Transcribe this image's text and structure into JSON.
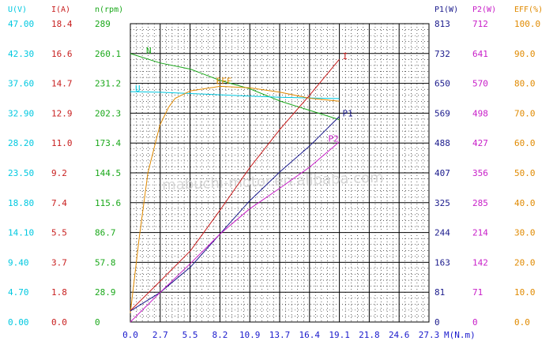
{
  "chart_data": {
    "type": "line",
    "watermark": "mabuchi-motor.en.alibaba.com",
    "x_axis": {
      "label": "M(N.m)",
      "ticks": [
        "0.0",
        "2.7",
        "5.5",
        "8.2",
        "10.9",
        "13.7",
        "16.4",
        "19.1",
        "21.8",
        "24.6",
        "27.3"
      ],
      "range": [
        0,
        27.3
      ]
    },
    "left_axes": [
      {
        "header": "U(V)",
        "color": "#00c8e0",
        "ticks": [
          "0.00",
          "4.70",
          "9.40",
          "14.10",
          "18.80",
          "23.50",
          "28.20",
          "32.90",
          "37.60",
          "42.30",
          "47.00"
        ],
        "range": [
          0,
          47
        ]
      },
      {
        "header": "I(A)",
        "color": "#c81e1e",
        "ticks": [
          "0.0",
          "1.8",
          "3.7",
          "5.5",
          "7.4",
          "9.2",
          "11.0",
          "12.9",
          "14.7",
          "16.6",
          "18.4"
        ],
        "range": [
          0,
          18.4
        ]
      },
      {
        "header": "n(rpm)",
        "color": "#1aa81a",
        "ticks": [
          "0",
          "28.9",
          "57.8",
          "86.7",
          "115.6",
          "144.5",
          "173.4",
          "202.3",
          "231.2",
          "260.1",
          "289"
        ],
        "range": [
          0,
          289
        ]
      }
    ],
    "right_axes": [
      {
        "header": "P1(W)",
        "color": "#1a1a8c",
        "ticks": [
          "0",
          "81",
          "163",
          "244",
          "325",
          "407",
          "488",
          "569",
          "650",
          "732",
          "813"
        ],
        "range": [
          0,
          813
        ]
      },
      {
        "header": "P2(W)",
        "color": "#c81ec8",
        "ticks": [
          "0",
          "71",
          "142",
          "214",
          "285",
          "356",
          "427",
          "498",
          "570",
          "641",
          "712"
        ],
        "range": [
          0,
          712
        ]
      },
      {
        "header": "EFF(%)",
        "color": "#e08a00",
        "ticks": [
          "0.0",
          "10.0",
          "20.0",
          "30.0",
          "40.0",
          "50.0",
          "60.0",
          "70.0",
          "80.0",
          "90.0",
          "100.0"
        ],
        "range": [
          0,
          100
        ]
      }
    ],
    "series": [
      {
        "name": "N",
        "axis": "n(rpm)",
        "color": "#1aa81a",
        "x": [
          0.0,
          2.7,
          5.5,
          8.2,
          10.9,
          13.7,
          16.4,
          19.1
        ],
        "y": [
          260,
          251,
          245,
          234,
          226,
          214,
          205,
          196
        ]
      },
      {
        "name": "U",
        "axis": "U(V)",
        "color": "#00c8e0",
        "x": [
          0.0,
          2.7,
          5.5,
          8.2,
          10.9,
          13.7,
          16.4,
          19.1
        ],
        "y": [
          36.3,
          36.2,
          36.0,
          35.8,
          35.6,
          35.4,
          35.3,
          35.2
        ]
      },
      {
        "name": "EFF",
        "axis": "EFF(%)",
        "color": "#e08a00",
        "x": [
          0.0,
          0.8,
          1.6,
          2.7,
          3.5,
          4.1,
          5.5,
          8.2,
          10.9,
          13.7,
          16.4,
          19.1
        ],
        "y": [
          3,
          28,
          50,
          66,
          72,
          75,
          77.5,
          79,
          78.5,
          77,
          75,
          74
        ]
      },
      {
        "name": "I",
        "axis": "I(A)",
        "color": "#c81e1e",
        "x": [
          0.0,
          2.7,
          5.5,
          8.2,
          10.9,
          13.7,
          16.4,
          19.1
        ],
        "y": [
          0.7,
          2.5,
          4.4,
          6.9,
          9.5,
          11.9,
          14.0,
          16.2
        ]
      },
      {
        "name": "P1",
        "axis": "P1(W)",
        "color": "#1a1a8c",
        "x": [
          0.0,
          2.7,
          5.5,
          8.2,
          10.9,
          13.7,
          16.4,
          19.1
        ],
        "y": [
          30,
          80,
          150,
          240,
          330,
          410,
          480,
          560
        ]
      },
      {
        "name": "P2",
        "axis": "P2(W)",
        "color": "#c81ec8",
        "x": [
          0.0,
          2.7,
          5.5,
          8.2,
          10.9,
          13.7,
          16.4,
          19.1
        ],
        "y": [
          0,
          70,
          140,
          210,
          270,
          320,
          370,
          430
        ]
      }
    ]
  }
}
